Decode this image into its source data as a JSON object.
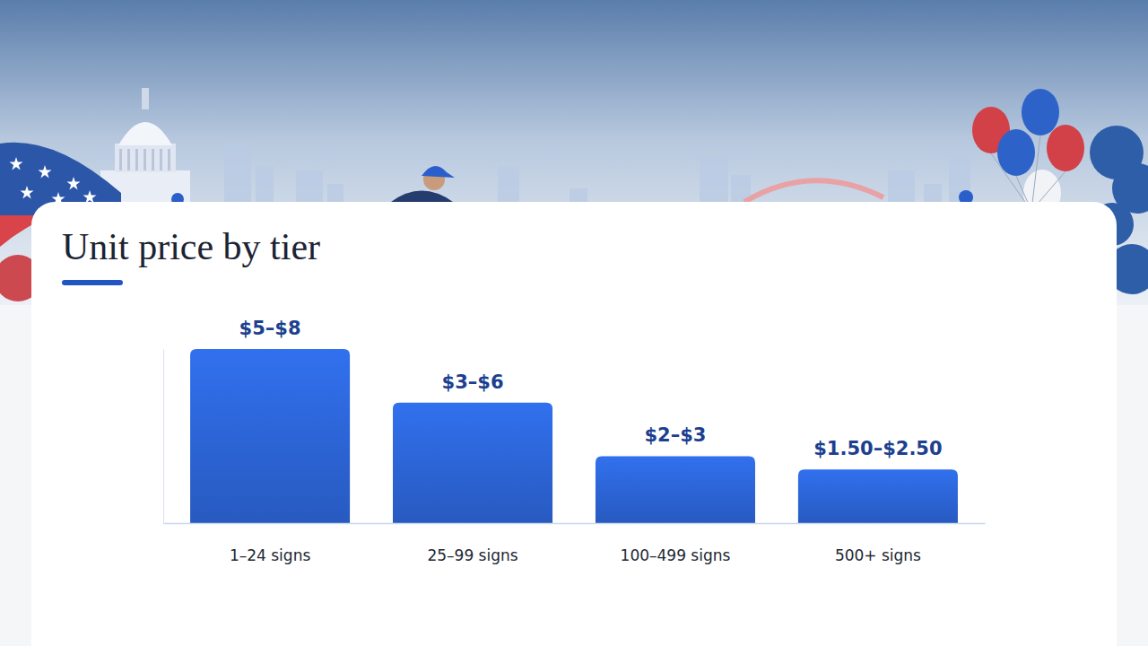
{
  "chart_data": {
    "type": "bar",
    "title": "Unit price by tier",
    "categories": [
      "1–24 signs",
      "25–99 signs",
      "100–499 signs",
      "500+ signs"
    ],
    "values": [
      6.5,
      4.5,
      2.5,
      2
    ],
    "bar_labels": [
      "$5–$8",
      "$3–$6",
      "$2–$3",
      "$1.50–$2.50"
    ],
    "color": "#2a5fcb",
    "ylim": [
      0,
      6.5
    ],
    "tick_labels": "x"
  }
}
